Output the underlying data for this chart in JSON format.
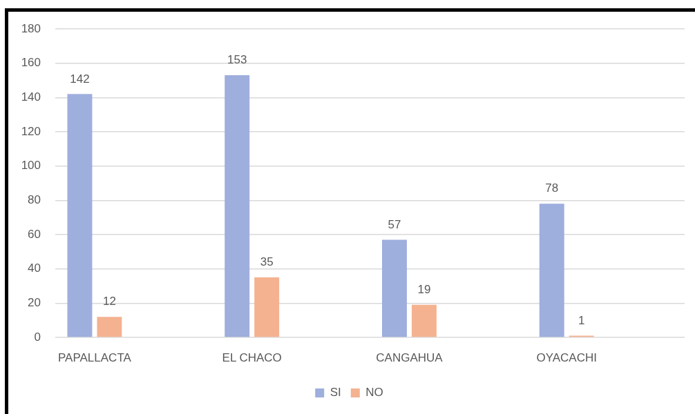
{
  "chart_data": {
    "type": "bar",
    "categories": [
      "PAPALLACTA",
      "EL CHACO",
      "CANGAHUA",
      "OYACACHI"
    ],
    "series": [
      {
        "name": "SI",
        "color": "#9eaedd",
        "values": [
          142,
          153,
          57,
          78
        ]
      },
      {
        "name": "NO",
        "color": "#f4b290",
        "values": [
          12,
          35,
          19,
          1
        ]
      }
    ],
    "ylim": [
      0,
      180
    ],
    "yticks": [
      0,
      20,
      40,
      60,
      80,
      100,
      120,
      140,
      160,
      180
    ],
    "grid": "y",
    "legend": "bottom",
    "data_labels": true
  }
}
